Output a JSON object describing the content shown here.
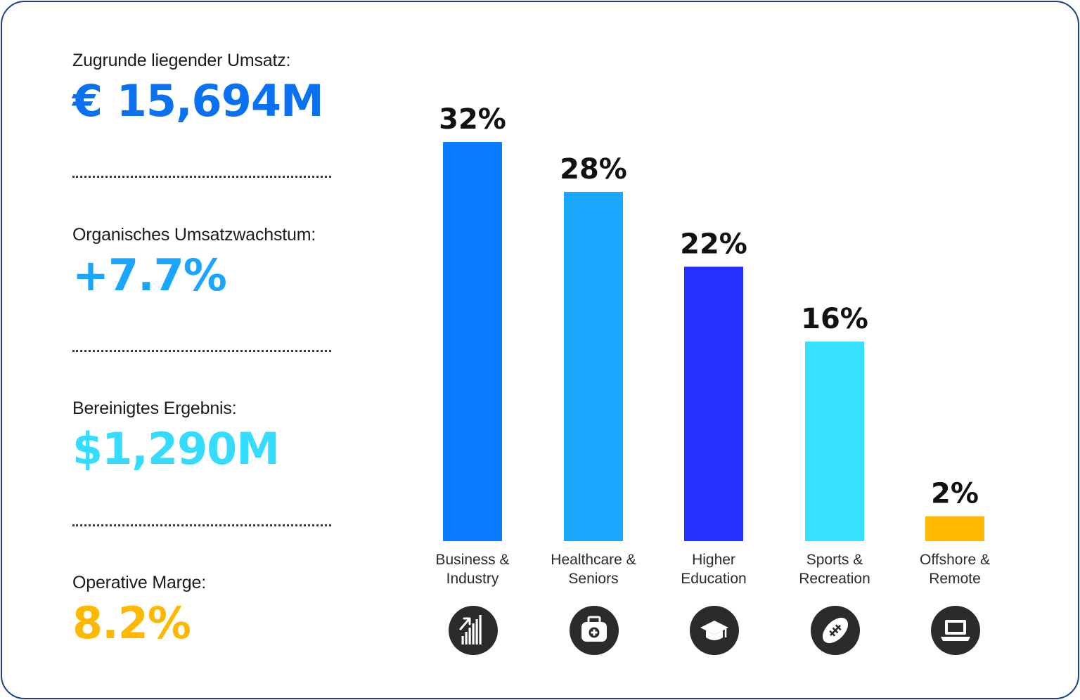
{
  "kpis": [
    {
      "label": "Zugrunde liegender Umsatz:",
      "value": "€ 15,694M",
      "color": "#0a72f0"
    },
    {
      "label": "Organisches Umsatzwachstum:",
      "value": "+7.7%",
      "color": "#1aa6ff"
    },
    {
      "label": "Bereinigtes Ergebnis:",
      "value": "$1,290M",
      "color": "#35dcff"
    },
    {
      "label": "Operative Marge:",
      "value": "8.2%",
      "color": "#ffb800"
    }
  ],
  "chart_data": {
    "type": "bar",
    "title": "",
    "xlabel": "",
    "ylabel": "",
    "ylim": [
      0,
      32
    ],
    "grid": false,
    "legend": "none",
    "categories": [
      {
        "line1": "Business &",
        "line2": "Industry",
        "icon": "growth-chart-icon"
      },
      {
        "line1": "Healthcare &",
        "line2": "Seniors",
        "icon": "medical-bag-icon"
      },
      {
        "line1": "Higher",
        "line2": "Education",
        "icon": "graduation-cap-icon"
      },
      {
        "line1": "Sports &",
        "line2": "Recreation",
        "icon": "football-icon"
      },
      {
        "line1": "Offshore &",
        "line2": "Remote",
        "icon": "laptop-icon"
      }
    ],
    "values": [
      32,
      28,
      22,
      16,
      2
    ],
    "value_labels": [
      "32%",
      "28%",
      "22%",
      "16%",
      "2%"
    ],
    "colors": [
      "#0a7bff",
      "#1aa8ff",
      "#2430ff",
      "#36e0ff",
      "#ffb800"
    ],
    "icon_color": "#2b2b2e"
  }
}
